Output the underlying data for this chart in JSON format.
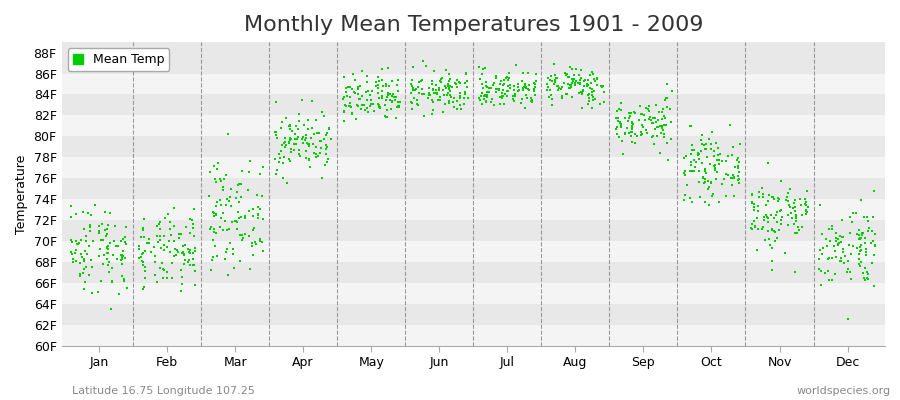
{
  "title": "Monthly Mean Temperatures 1901 - 2009",
  "ylabel": "Temperature",
  "xlabel_labels": [
    "Jan",
    "Feb",
    "Mar",
    "Apr",
    "May",
    "Jun",
    "Jul",
    "Aug",
    "Sep",
    "Oct",
    "Nov",
    "Dec"
  ],
  "ytick_labels": [
    "60F",
    "62F",
    "64F",
    "66F",
    "68F",
    "70F",
    "72F",
    "74F",
    "76F",
    "78F",
    "80F",
    "82F",
    "84F",
    "86F",
    "88F"
  ],
  "ytick_values": [
    60,
    62,
    64,
    66,
    68,
    70,
    72,
    74,
    76,
    78,
    80,
    82,
    84,
    86,
    88
  ],
  "ylim": [
    60,
    89
  ],
  "fig_background_color": "#ffffff",
  "plot_bg_color": "#e8e8e8",
  "band_color_odd": "#e8e8e8",
  "band_color_even": "#f4f4f4",
  "dot_color": "#00cc00",
  "dot_size": 3,
  "legend_label": "Mean Temp",
  "footer_left": "Latitude 16.75 Longitude 107.25",
  "footer_right": "worldspecies.org",
  "title_fontsize": 16,
  "label_fontsize": 9,
  "footer_fontsize": 8,
  "monthly_mean_temps": [
    69.3,
    68.8,
    72.5,
    79.5,
    83.5,
    84.2,
    84.5,
    84.8,
    81.2,
    77.0,
    72.5,
    69.5
  ],
  "monthly_std": [
    2.2,
    1.8,
    2.5,
    1.5,
    1.2,
    1.0,
    0.9,
    0.9,
    1.2,
    1.5,
    1.8,
    2.0
  ]
}
